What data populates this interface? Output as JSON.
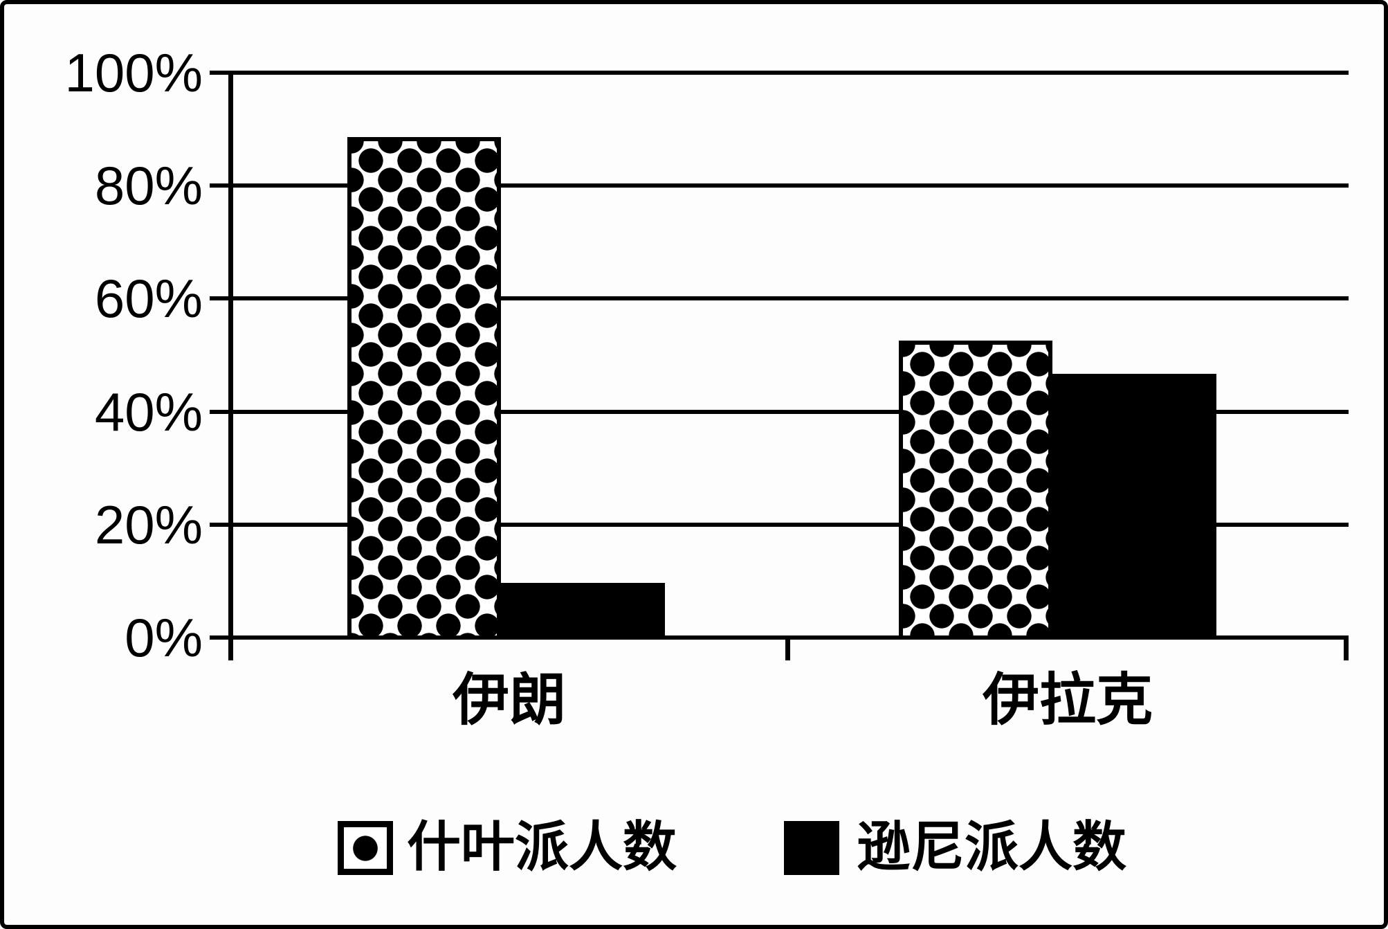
{
  "chart_data": {
    "type": "bar",
    "title": "",
    "categories": [
      "伊朗",
      "伊拉克"
    ],
    "series": [
      {
        "name": "什叶派人数",
        "style": "polka-dot",
        "values": [
          89,
          53
        ]
      },
      {
        "name": "逊尼派人数",
        "style": "solid-black",
        "values": [
          10,
          47
        ]
      }
    ],
    "y_axis": {
      "unit": "%",
      "min": 0,
      "max": 100,
      "tick_step": 20,
      "tick_labels": [
        "100%",
        "80%",
        "60%",
        "40%",
        "20%",
        "0%"
      ]
    },
    "grid": "horizontal-only",
    "legend_position": "bottom",
    "colors": {
      "ink": "#000000",
      "background": "#ffffff"
    }
  }
}
